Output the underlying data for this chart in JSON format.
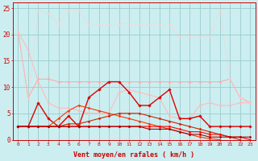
{
  "xlabel": "Vent moyen/en rafales ( km/h )",
  "background_color": "#cceef0",
  "grid_color": "#99cccc",
  "x_values": [
    0,
    1,
    2,
    3,
    4,
    5,
    6,
    7,
    8,
    9,
    10,
    11,
    12,
    13,
    14,
    15,
    16,
    17,
    18,
    19,
    20,
    21,
    22,
    23
  ],
  "series": [
    {
      "y": [
        20.5,
        8,
        11.5,
        11.5,
        11,
        11,
        11,
        11,
        11,
        11,
        11,
        11,
        11,
        11,
        11,
        11,
        11,
        11,
        11,
        11,
        11,
        11.5,
        8,
        7
      ],
      "color": "#ffaaaa",
      "lw": 0.8,
      "marker": "D",
      "ms": 1.5,
      "ls": "-",
      "mew": 0.3
    },
    {
      "y": [
        20.5,
        17,
        11,
        7,
        6,
        6,
        5.5,
        5,
        5,
        5,
        9,
        9.5,
        9,
        8.5,
        8,
        4.5,
        4,
        4,
        6.5,
        7,
        6.5,
        6.5,
        7,
        7
      ],
      "color": "#ffbbbb",
      "lw": 0.8,
      "marker": "D",
      "ms": 1.5,
      "ls": "-",
      "mew": 0.3
    },
    {
      "y": [
        20.5,
        8,
        24.5,
        24,
        22,
        24.5,
        24.5,
        22,
        22,
        22,
        22,
        22,
        22,
        22,
        22,
        22,
        19.5,
        19.5,
        19.5,
        19.5,
        24.5,
        11.5,
        8,
        7
      ],
      "color": "#ffcccc",
      "lw": 0.8,
      "marker": "D",
      "ms": 1.5,
      "ls": ":",
      "mew": 0.3
    },
    {
      "y": [
        2.5,
        2.5,
        7,
        4,
        2.5,
        4.5,
        2.5,
        8,
        9.5,
        11,
        11,
        9,
        6.5,
        6.5,
        8,
        9.5,
        4,
        4,
        4.5,
        2.5,
        2.5,
        2.5,
        2.5,
        2.5
      ],
      "color": "#dd0000",
      "lw": 1.0,
      "marker": "D",
      "ms": 1.8,
      "ls": "-",
      "mew": 0.3
    },
    {
      "y": [
        2.5,
        2.5,
        2.5,
        2.5,
        4,
        5.5,
        6.5,
        6,
        5.5,
        5,
        4.5,
        4,
        3.5,
        3,
        2.5,
        2,
        1.5,
        1,
        0.5,
        0.2,
        0,
        null,
        null,
        null
      ],
      "color": "#ff3300",
      "lw": 0.8,
      "marker": "D",
      "ms": 1.5,
      "ls": "-",
      "mew": 0.3
    },
    {
      "y": [
        2.5,
        2.5,
        2.5,
        2.5,
        2.5,
        3,
        3,
        3.5,
        4,
        4.5,
        5,
        5,
        5,
        4.5,
        4,
        3.5,
        3,
        2.5,
        2,
        1.5,
        1,
        0.5,
        0,
        null
      ],
      "color": "#cc2200",
      "lw": 0.8,
      "marker": "D",
      "ms": 1.5,
      "ls": "-",
      "mew": 0.3
    },
    {
      "y": [
        2.5,
        2.5,
        2.5,
        2.5,
        2.5,
        2.5,
        2.5,
        2.5,
        2.5,
        2.5,
        2.5,
        2.5,
        2.5,
        2.5,
        2.5,
        2.5,
        2,
        1.5,
        1.5,
        1,
        1,
        0.5,
        0.5,
        0
      ],
      "color": "#ff0000",
      "lw": 0.8,
      "marker": "D",
      "ms": 1.5,
      "ls": "-",
      "mew": 0.3
    },
    {
      "y": [
        2.5,
        2.5,
        2.5,
        2.5,
        2.5,
        2.5,
        2.5,
        2.5,
        2.5,
        2.5,
        2.5,
        2.5,
        2.5,
        2,
        2,
        2,
        1.5,
        1,
        1,
        0.5,
        0.5,
        0.5,
        0.5,
        0.5
      ],
      "color": "#aa0000",
      "lw": 0.8,
      "marker": "D",
      "ms": 1.5,
      "ls": "-",
      "mew": 0.3
    }
  ],
  "ylim": [
    0,
    26
  ],
  "yticks": [
    0,
    5,
    10,
    15,
    20,
    25
  ],
  "xlim": [
    -0.5,
    23.5
  ]
}
